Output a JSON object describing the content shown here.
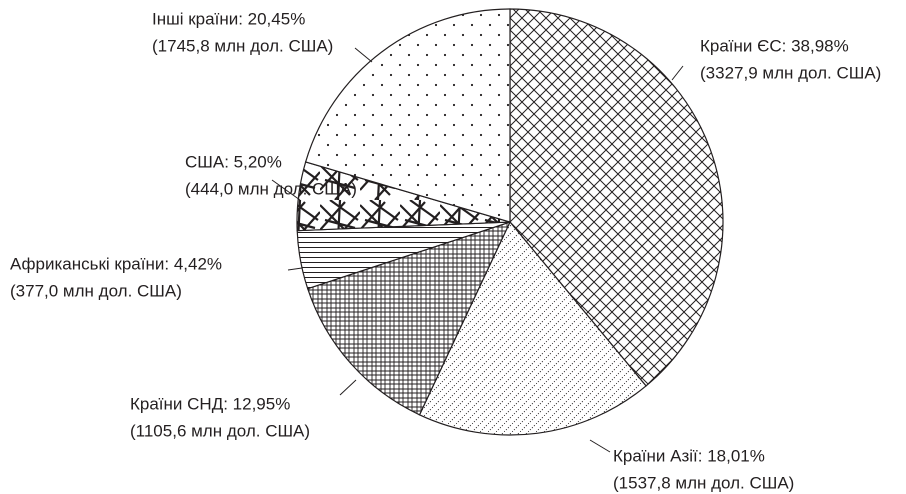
{
  "chart_data": {
    "type": "pie",
    "values": [
      38.98,
      18.01,
      12.95,
      4.42,
      5.2,
      20.45
    ],
    "value_labels": [
      "Країни ЄС: 38,98%",
      "Країни Азії: 18,01%",
      "Країни СНД: 12,95%",
      "Африканські країни: 4,42%",
      "США: 5,20%",
      "Інші країни: 20,45%"
    ],
    "amounts": [
      3327.9,
      1537.8,
      1105.6,
      377.0,
      444.0,
      1745.8
    ],
    "amount_labels": [
      "(3327,9 млн дол. США)",
      "(1537,8 млн дол. США)",
      "(1105,6 млн дол. США)",
      "(377,0 млн дол. США)",
      "(444,0 млн дол. США)",
      "(1745,8 млн дол. США)"
    ]
  }
}
